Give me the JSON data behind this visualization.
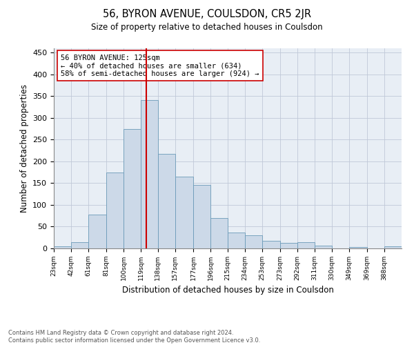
{
  "title": "56, BYRON AVENUE, COULSDON, CR5 2JR",
  "subtitle": "Size of property relative to detached houses in Coulsdon",
  "xlabel": "Distribution of detached houses by size in Coulsdon",
  "ylabel": "Number of detached properties",
  "footer_line1": "Contains HM Land Registry data © Crown copyright and database right 2024.",
  "footer_line2": "Contains public sector information licensed under the Open Government Licence v3.0.",
  "annotation_line1": "56 BYRON AVENUE: 125sqm",
  "annotation_line2": "← 40% of detached houses are smaller (634)",
  "annotation_line3": "58% of semi-detached houses are larger (924) →",
  "property_size": 125,
  "red_line_x": 125,
  "bar_edges": [
    23,
    42,
    61,
    81,
    100,
    119,
    138,
    157,
    177,
    196,
    215,
    234,
    253,
    273,
    292,
    311,
    330,
    349,
    369,
    388,
    407
  ],
  "bar_heights": [
    5,
    14,
    77,
    175,
    275,
    341,
    218,
    165,
    146,
    70,
    36,
    30,
    18,
    12,
    15,
    7,
    0,
    3,
    0,
    4
  ],
  "bar_color": "#ccd9e8",
  "bar_edge_color": "#6a9ab8",
  "red_line_color": "#cc0000",
  "grid_color": "#c0c8d8",
  "background_color": "#e8eef5",
  "ylim": [
    0,
    460
  ],
  "yticks": [
    0,
    50,
    100,
    150,
    200,
    250,
    300,
    350,
    400,
    450
  ]
}
